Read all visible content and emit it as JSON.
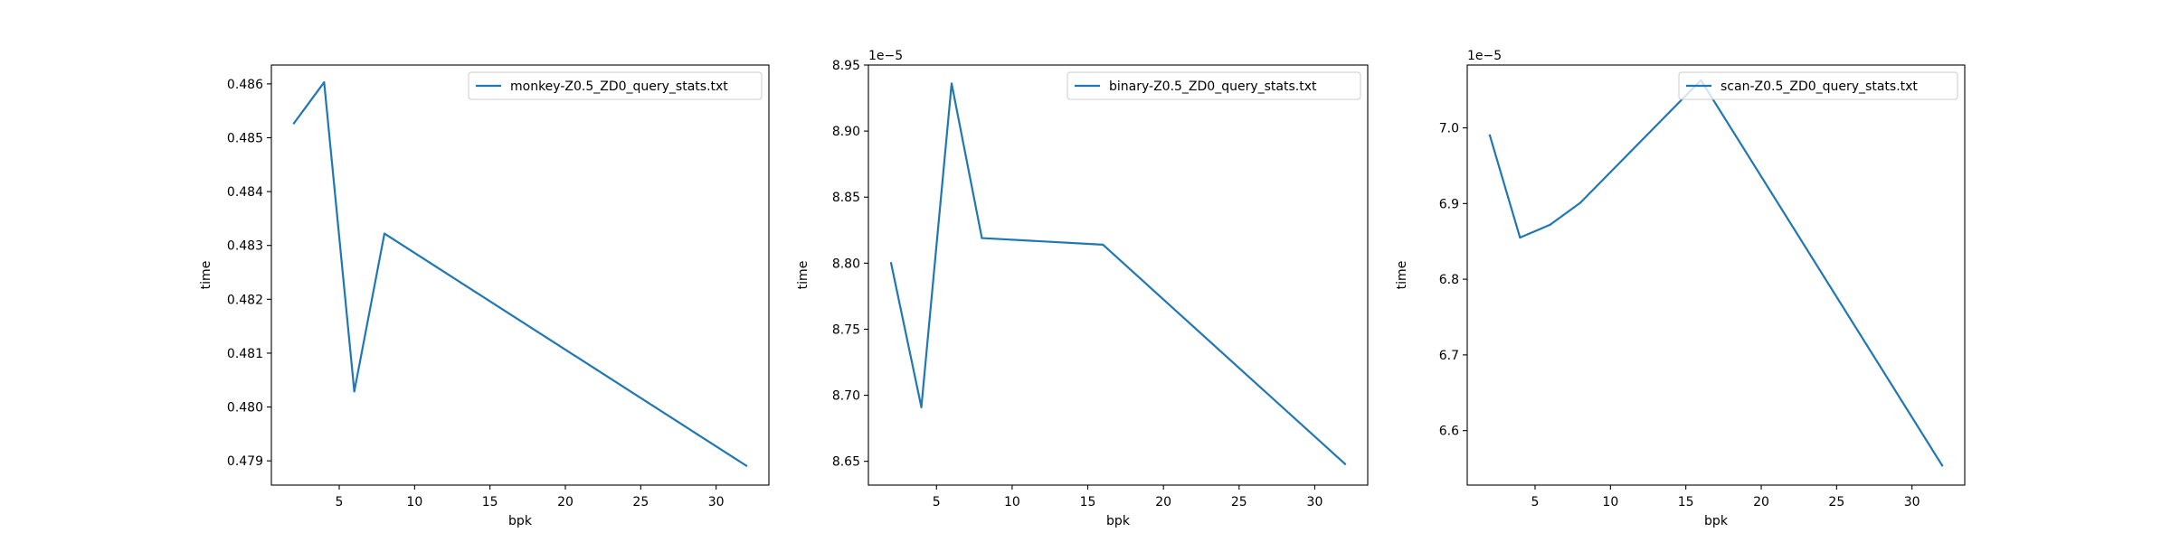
{
  "figure": {
    "background": "#ffffff",
    "line_color": "#1f77b4"
  },
  "chart_data": [
    {
      "type": "line",
      "title": "",
      "xlabel": "bpk",
      "ylabel": "time",
      "xlim": [
        0.5,
        33.5
      ],
      "ylim": [
        0.47855,
        0.48635
      ],
      "xticks": [
        5,
        10,
        15,
        20,
        25,
        30
      ],
      "xtick_labels": [
        "5",
        "10",
        "15",
        "20",
        "25",
        "30"
      ],
      "yticks": [
        0.479,
        0.48,
        0.481,
        0.482,
        0.483,
        0.484,
        0.485,
        0.486
      ],
      "ytick_labels": [
        "0.479",
        "0.480",
        "0.481",
        "0.482",
        "0.483",
        "0.484",
        "0.485",
        "0.486"
      ],
      "offset_label": "",
      "legend": "upper right",
      "grid": false,
      "series": [
        {
          "name": "monkey-Z0.5_ZD0_query_stats.txt",
          "x": [
            2,
            4,
            6,
            8,
            32
          ],
          "y": [
            0.48527,
            0.48603,
            0.48029,
            0.48322,
            0.47891
          ]
        }
      ]
    },
    {
      "type": "line",
      "title": "",
      "xlabel": "bpk",
      "ylabel": "time",
      "xlim": [
        0.5,
        33.5
      ],
      "ylim": [
        8.632e-05,
        8.95e-05
      ],
      "xticks": [
        5,
        10,
        15,
        20,
        25,
        30
      ],
      "xtick_labels": [
        "5",
        "10",
        "15",
        "20",
        "25",
        "30"
      ],
      "yticks": [
        8.65e-05,
        8.7e-05,
        8.75e-05,
        8.8e-05,
        8.85e-05,
        8.9e-05,
        8.95e-05
      ],
      "ytick_labels": [
        "8.65",
        "8.70",
        "8.75",
        "8.80",
        "8.85",
        "8.90",
        "8.95"
      ],
      "offset_label": "1e−5",
      "legend": "upper right",
      "grid": false,
      "series": [
        {
          "name": "binary-Z0.5_ZD0_query_stats.txt",
          "x": [
            2,
            4,
            6,
            8,
            16,
            32
          ],
          "y": [
            8.8e-05,
            8.691e-05,
            8.936e-05,
            8.819e-05,
            8.814e-05,
            8.648e-05
          ]
        }
      ]
    },
    {
      "type": "line",
      "title": "",
      "xlabel": "bpk",
      "ylabel": "time",
      "xlim": [
        0.5,
        33.5
      ],
      "ylim": [
        6.528e-05,
        7.083e-05
      ],
      "xticks": [
        5,
        10,
        15,
        20,
        25,
        30
      ],
      "xtick_labels": [
        "5",
        "10",
        "15",
        "20",
        "25",
        "30"
      ],
      "yticks": [
        6.6e-05,
        6.7e-05,
        6.8e-05,
        6.9e-05,
        7e-05
      ],
      "ytick_labels": [
        "6.6",
        "6.7",
        "6.8",
        "6.9",
        "7.0"
      ],
      "offset_label": "1e−5",
      "legend": "upper right",
      "grid": false,
      "series": [
        {
          "name": "scan-Z0.5_ZD0_query_stats.txt",
          "x": [
            2,
            4,
            6,
            8,
            16,
            32
          ],
          "y": [
            6.99e-05,
            6.855e-05,
            6.872e-05,
            6.901e-05,
            7.063e-05,
            6.554e-05
          ]
        }
      ]
    }
  ]
}
